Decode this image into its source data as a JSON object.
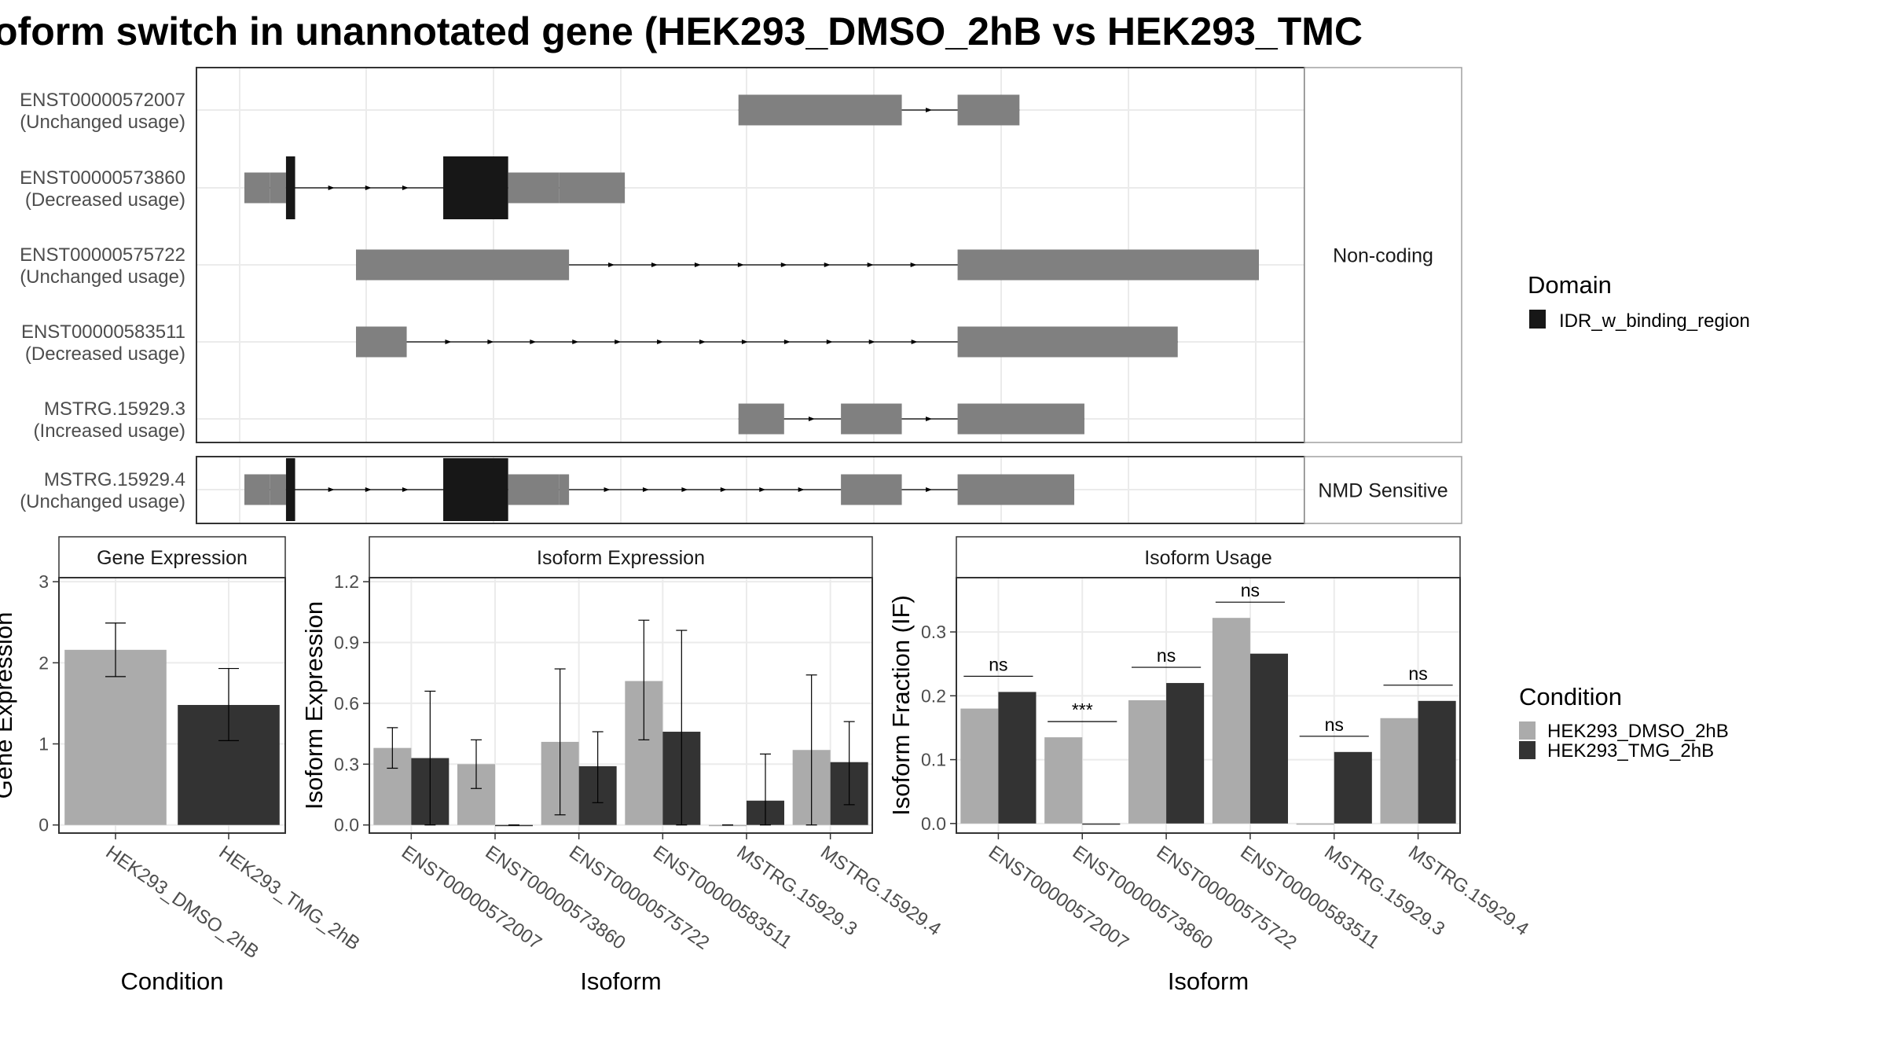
{
  "title": "oform switch in unannotated gene (HEK293_DMSO_2hB vs HEK293_TMC",
  "colors": {
    "exon": "#808080",
    "domain": "#171717",
    "dmso": "#ababab",
    "tmg": "#333333",
    "grid": "#ebebeb",
    "border": "#333333"
  },
  "chart_data": [
    {
      "type": "isoform-structure",
      "panels": [
        {
          "label": "Non-coding",
          "isoforms": [
            0,
            1,
            2,
            3,
            4
          ]
        },
        {
          "label": "NMD Sensitive",
          "isoforms": [
            5
          ]
        }
      ],
      "isoforms": [
        {
          "id": "ENST00000572007",
          "usage": "(Unchanged usage)",
          "exons": [
            [
              0.487,
              0.648,
              "e"
            ],
            [
              0.703,
              0.764,
              "e"
            ]
          ]
        },
        {
          "id": "ENST00000573860",
          "usage": "(Decreased usage)",
          "exons": [
            [
              0.0,
              0.025,
              "u"
            ],
            [
              0.025,
              0.041,
              "e"
            ],
            [
              0.041,
              0.05,
              "d"
            ],
            [
              0.196,
              0.26,
              "d"
            ],
            [
              0.26,
              0.31,
              "e"
            ],
            [
              0.31,
              0.375,
              "u"
            ]
          ]
        },
        {
          "id": "ENST00000575722",
          "usage": "(Unchanged usage)",
          "exons": [
            [
              0.11,
              0.32,
              "e"
            ],
            [
              0.703,
              1.0,
              "e"
            ]
          ]
        },
        {
          "id": "ENST00000583511",
          "usage": "(Decreased usage)",
          "exons": [
            [
              0.11,
              0.16,
              "e"
            ],
            [
              0.703,
              0.92,
              "e"
            ]
          ]
        },
        {
          "id": "MSTRG.15929.3",
          "usage": "(Increased usage)",
          "exons": [
            [
              0.487,
              0.532,
              "e"
            ],
            [
              0.588,
              0.648,
              "e"
            ],
            [
              0.703,
              0.828,
              "e"
            ]
          ]
        },
        {
          "id": "MSTRG.15929.4",
          "usage": "(Unchanged usage)",
          "exons": [
            [
              0.0,
              0.025,
              "u"
            ],
            [
              0.025,
              0.041,
              "e"
            ],
            [
              0.041,
              0.05,
              "d"
            ],
            [
              0.196,
              0.26,
              "d"
            ],
            [
              0.26,
              0.31,
              "e"
            ],
            [
              0.31,
              0.32,
              "u"
            ],
            [
              0.588,
              0.648,
              "e"
            ],
            [
              0.703,
              0.818,
              "e"
            ]
          ]
        }
      ],
      "legend": {
        "title": "Domain",
        "items": [
          "IDR_w_binding_region"
        ]
      }
    },
    {
      "type": "bar",
      "title": "Gene Expression",
      "xlabel": "Condition",
      "ylabel": "Gene Expression",
      "ylim": [
        -0.1,
        3.05
      ],
      "yticks": [
        "0",
        "1",
        "2",
        "3"
      ],
      "categories": [
        "HEK293_DMSO_2hB",
        "HEK293_TMG_2hB"
      ],
      "series": [
        {
          "values": [
            2.16,
            1.48
          ],
          "err_low": [
            1.83,
            1.04
          ],
          "err_high": [
            2.49,
            1.93
          ]
        }
      ]
    },
    {
      "type": "bar",
      "title": "Isoform Expression",
      "xlabel": "Isoform",
      "ylabel": "Isoform Expression",
      "ylim": [
        -0.04,
        1.22
      ],
      "yticks": [
        "0.0",
        "0.3",
        "0.6",
        "0.9",
        "1.2"
      ],
      "categories": [
        "ENST00000572007",
        "ENST00000573860",
        "ENST00000575722",
        "ENST00000583511",
        "MSTRG.15929.3",
        "MSTRG.15929.4"
      ],
      "series": [
        {
          "name": "HEK293_DMSO_2hB",
          "values": [
            0.38,
            0.3,
            0.41,
            0.71,
            0.0,
            0.37
          ],
          "err_low": [
            0.28,
            0.18,
            0.05,
            0.42,
            0.0,
            0.0
          ],
          "err_high": [
            0.48,
            0.42,
            0.77,
            1.01,
            0.0,
            0.74
          ]
        },
        {
          "name": "HEK293_TMG_2hB",
          "values": [
            0.33,
            0.0,
            0.29,
            0.46,
            0.12,
            0.31
          ],
          "err_low": [
            0.0,
            0.0,
            0.11,
            0.0,
            0.0,
            0.1
          ],
          "err_high": [
            0.66,
            0.0,
            0.46,
            0.96,
            0.35,
            0.51
          ]
        }
      ]
    },
    {
      "type": "bar",
      "title": "Isoform Usage",
      "xlabel": "Isoform",
      "ylabel": "Isoform Fraction (IF)",
      "ylim": [
        -0.015,
        0.385
      ],
      "yticks": [
        "0.0",
        "0.1",
        "0.2",
        "0.3"
      ],
      "categories": [
        "ENST00000572007",
        "ENST00000573860",
        "ENST00000575722",
        "ENST00000583511",
        "MSTRG.15929.3",
        "MSTRG.15929.4"
      ],
      "series": [
        {
          "name": "HEK293_DMSO_2hB",
          "values": [
            0.18,
            0.135,
            0.193,
            0.322,
            0.0,
            0.165
          ]
        },
        {
          "name": "HEK293_TMG_2hB",
          "values": [
            0.206,
            0.0,
            0.22,
            0.266,
            0.112,
            0.192
          ]
        }
      ],
      "annotations": [
        "ns",
        "***",
        "ns",
        "ns",
        "ns",
        "ns"
      ],
      "legend": {
        "title": "Condition",
        "items": [
          "HEK293_DMSO_2hB",
          "HEK293_TMG_2hB"
        ]
      }
    }
  ]
}
